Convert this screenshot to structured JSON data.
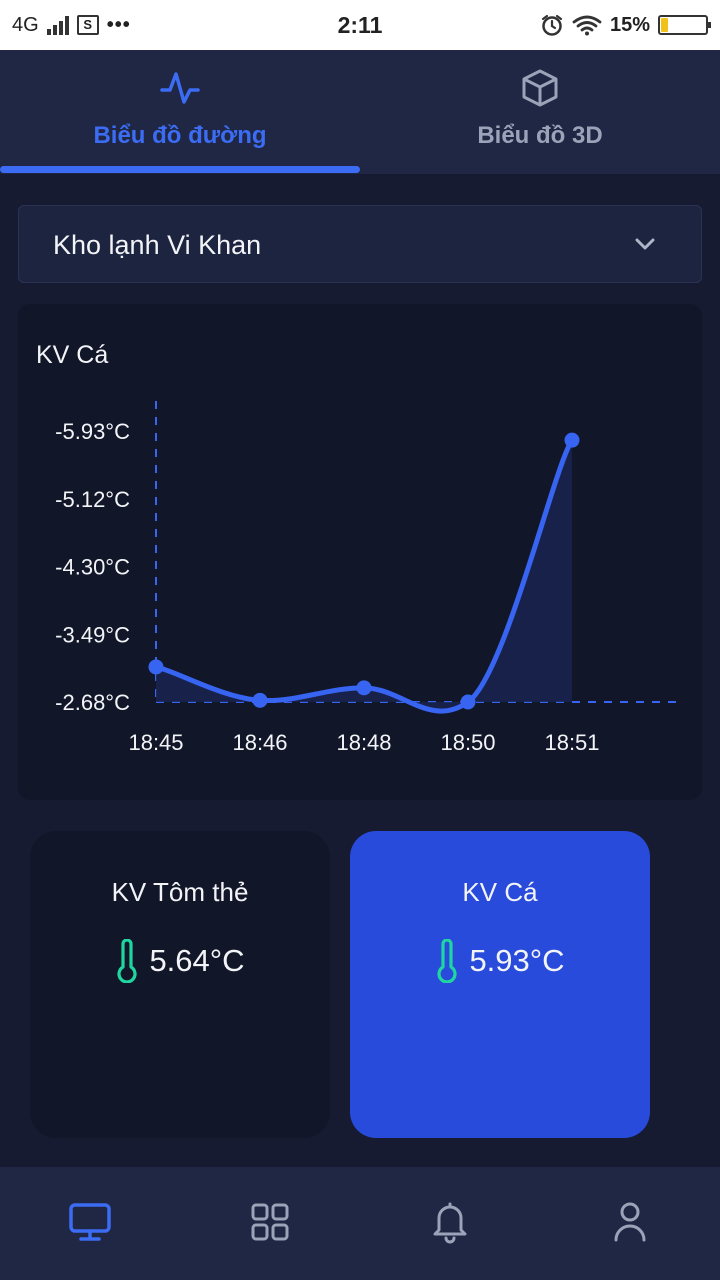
{
  "status_bar": {
    "network": "4G",
    "time": "2:11",
    "battery_percent": "15%",
    "battery_level": 0.15
  },
  "tabs": [
    {
      "label": "Biểu đồ đường",
      "icon": "line-chart-icon",
      "active": true
    },
    {
      "label": "Biểu đồ 3D",
      "icon": "cube-icon",
      "active": false
    }
  ],
  "dropdown": {
    "selected": "Kho lạnh Vi Khan"
  },
  "chart_data": {
    "type": "line",
    "title": "KV Cá",
    "categories": [
      "18:45",
      "18:46",
      "18:48",
      "18:50",
      "18:51"
    ],
    "values": [
      -3.1,
      -2.7,
      -2.85,
      -2.68,
      -5.82
    ],
    "y_ticks": [
      "-5.93°C",
      "-5.12°C",
      "-4.30°C",
      "-3.49°C",
      "-2.68°C"
    ],
    "ylim": [
      -2.68,
      -5.93
    ],
    "series_color": "#3864f2",
    "grid": false
  },
  "zones": [
    {
      "name": "KV Tôm thẻ",
      "temp": "5.64°C",
      "selected": false
    },
    {
      "name": "KV Cá",
      "temp": "5.93°C",
      "selected": true
    }
  ],
  "bottom_nav": [
    {
      "icon": "monitor-icon",
      "active": true
    },
    {
      "icon": "grid-icon",
      "active": false
    },
    {
      "icon": "bell-icon",
      "active": false
    },
    {
      "icon": "user-icon",
      "active": false
    }
  ],
  "colors": {
    "accent": "#3b6cf3",
    "background": "#161b31",
    "card": "#121629",
    "selected_card": "#284bdc",
    "thermometer": "#1fd6a0"
  }
}
